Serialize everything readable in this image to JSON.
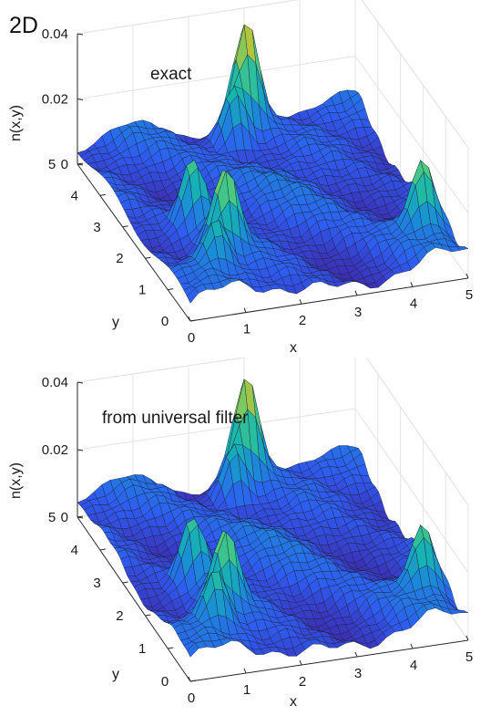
{
  "panel_label": "2D",
  "chart_data": [
    {
      "type": "surface",
      "title": "exact",
      "xlabel": "x",
      "ylabel": "y",
      "zlabel": "n(x,y)",
      "xlim": [
        0,
        5
      ],
      "ylim": [
        0,
        5
      ],
      "zlim": [
        0,
        0.04
      ],
      "xticks": [
        0,
        1,
        2,
        3,
        4,
        5
      ],
      "yticks": [
        0,
        1,
        2,
        3,
        4,
        5
      ],
      "zticks": [
        0,
        0.02,
        0.04
      ],
      "xtick_labels": [
        "0",
        "1",
        "2",
        "3",
        "4",
        "5"
      ],
      "ytick_labels": [
        "0",
        "1",
        "2",
        "3",
        "4",
        "5"
      ],
      "ztick_labels": [
        "0",
        "0.02",
        "0.04"
      ],
      "grid": true,
      "colormap": "parula",
      "colors": [
        "#3e26a8",
        "#2e5cf2",
        "#1b8ad9",
        "#17b5b0",
        "#51cc7b",
        "#bcc337",
        "#f9fb15"
      ],
      "peaks": [
        {
          "x": 3.0,
          "y": 4.9,
          "z": 0.038
        },
        {
          "x": 2.6,
          "y": 4.5,
          "z": 0.024
        },
        {
          "x": 4.6,
          "y": 1.0,
          "z": 0.028
        },
        {
          "x": 1.0,
          "y": 2.3,
          "z": 0.026
        },
        {
          "x": 1.2,
          "y": 1.4,
          "z": 0.03
        },
        {
          "x": 0.8,
          "y": 0.9,
          "z": 0.02
        }
      ]
    },
    {
      "type": "surface",
      "title": "from universal filter",
      "xlabel": "x",
      "ylabel": "y",
      "zlabel": "n(x,y)",
      "xlim": [
        0,
        5
      ],
      "ylim": [
        0,
        5
      ],
      "zlim": [
        0,
        0.04
      ],
      "xticks": [
        0,
        1,
        2,
        3,
        4,
        5
      ],
      "yticks": [
        0,
        1,
        2,
        3,
        4,
        5
      ],
      "zticks": [
        0,
        0.02,
        0.04
      ],
      "xtick_labels": [
        "0",
        "1",
        "2",
        "3",
        "4",
        "5"
      ],
      "ytick_labels": [
        "0",
        "1",
        "2",
        "3",
        "4",
        "5"
      ],
      "ztick_labels": [
        "0",
        "0.02",
        "0.04"
      ],
      "grid": true,
      "colormap": "parula",
      "colors": [
        "#3e26a8",
        "#2e5cf2",
        "#1b8ad9",
        "#17b5b0",
        "#51cc7b",
        "#bcc337",
        "#f9fb15"
      ],
      "peaks": [
        {
          "x": 3.0,
          "y": 4.9,
          "z": 0.036
        },
        {
          "x": 2.6,
          "y": 4.5,
          "z": 0.022
        },
        {
          "x": 4.6,
          "y": 1.0,
          "z": 0.026
        },
        {
          "x": 1.0,
          "y": 2.3,
          "z": 0.025
        },
        {
          "x": 1.2,
          "y": 1.4,
          "z": 0.028
        },
        {
          "x": 0.8,
          "y": 0.9,
          "z": 0.022
        }
      ]
    }
  ]
}
